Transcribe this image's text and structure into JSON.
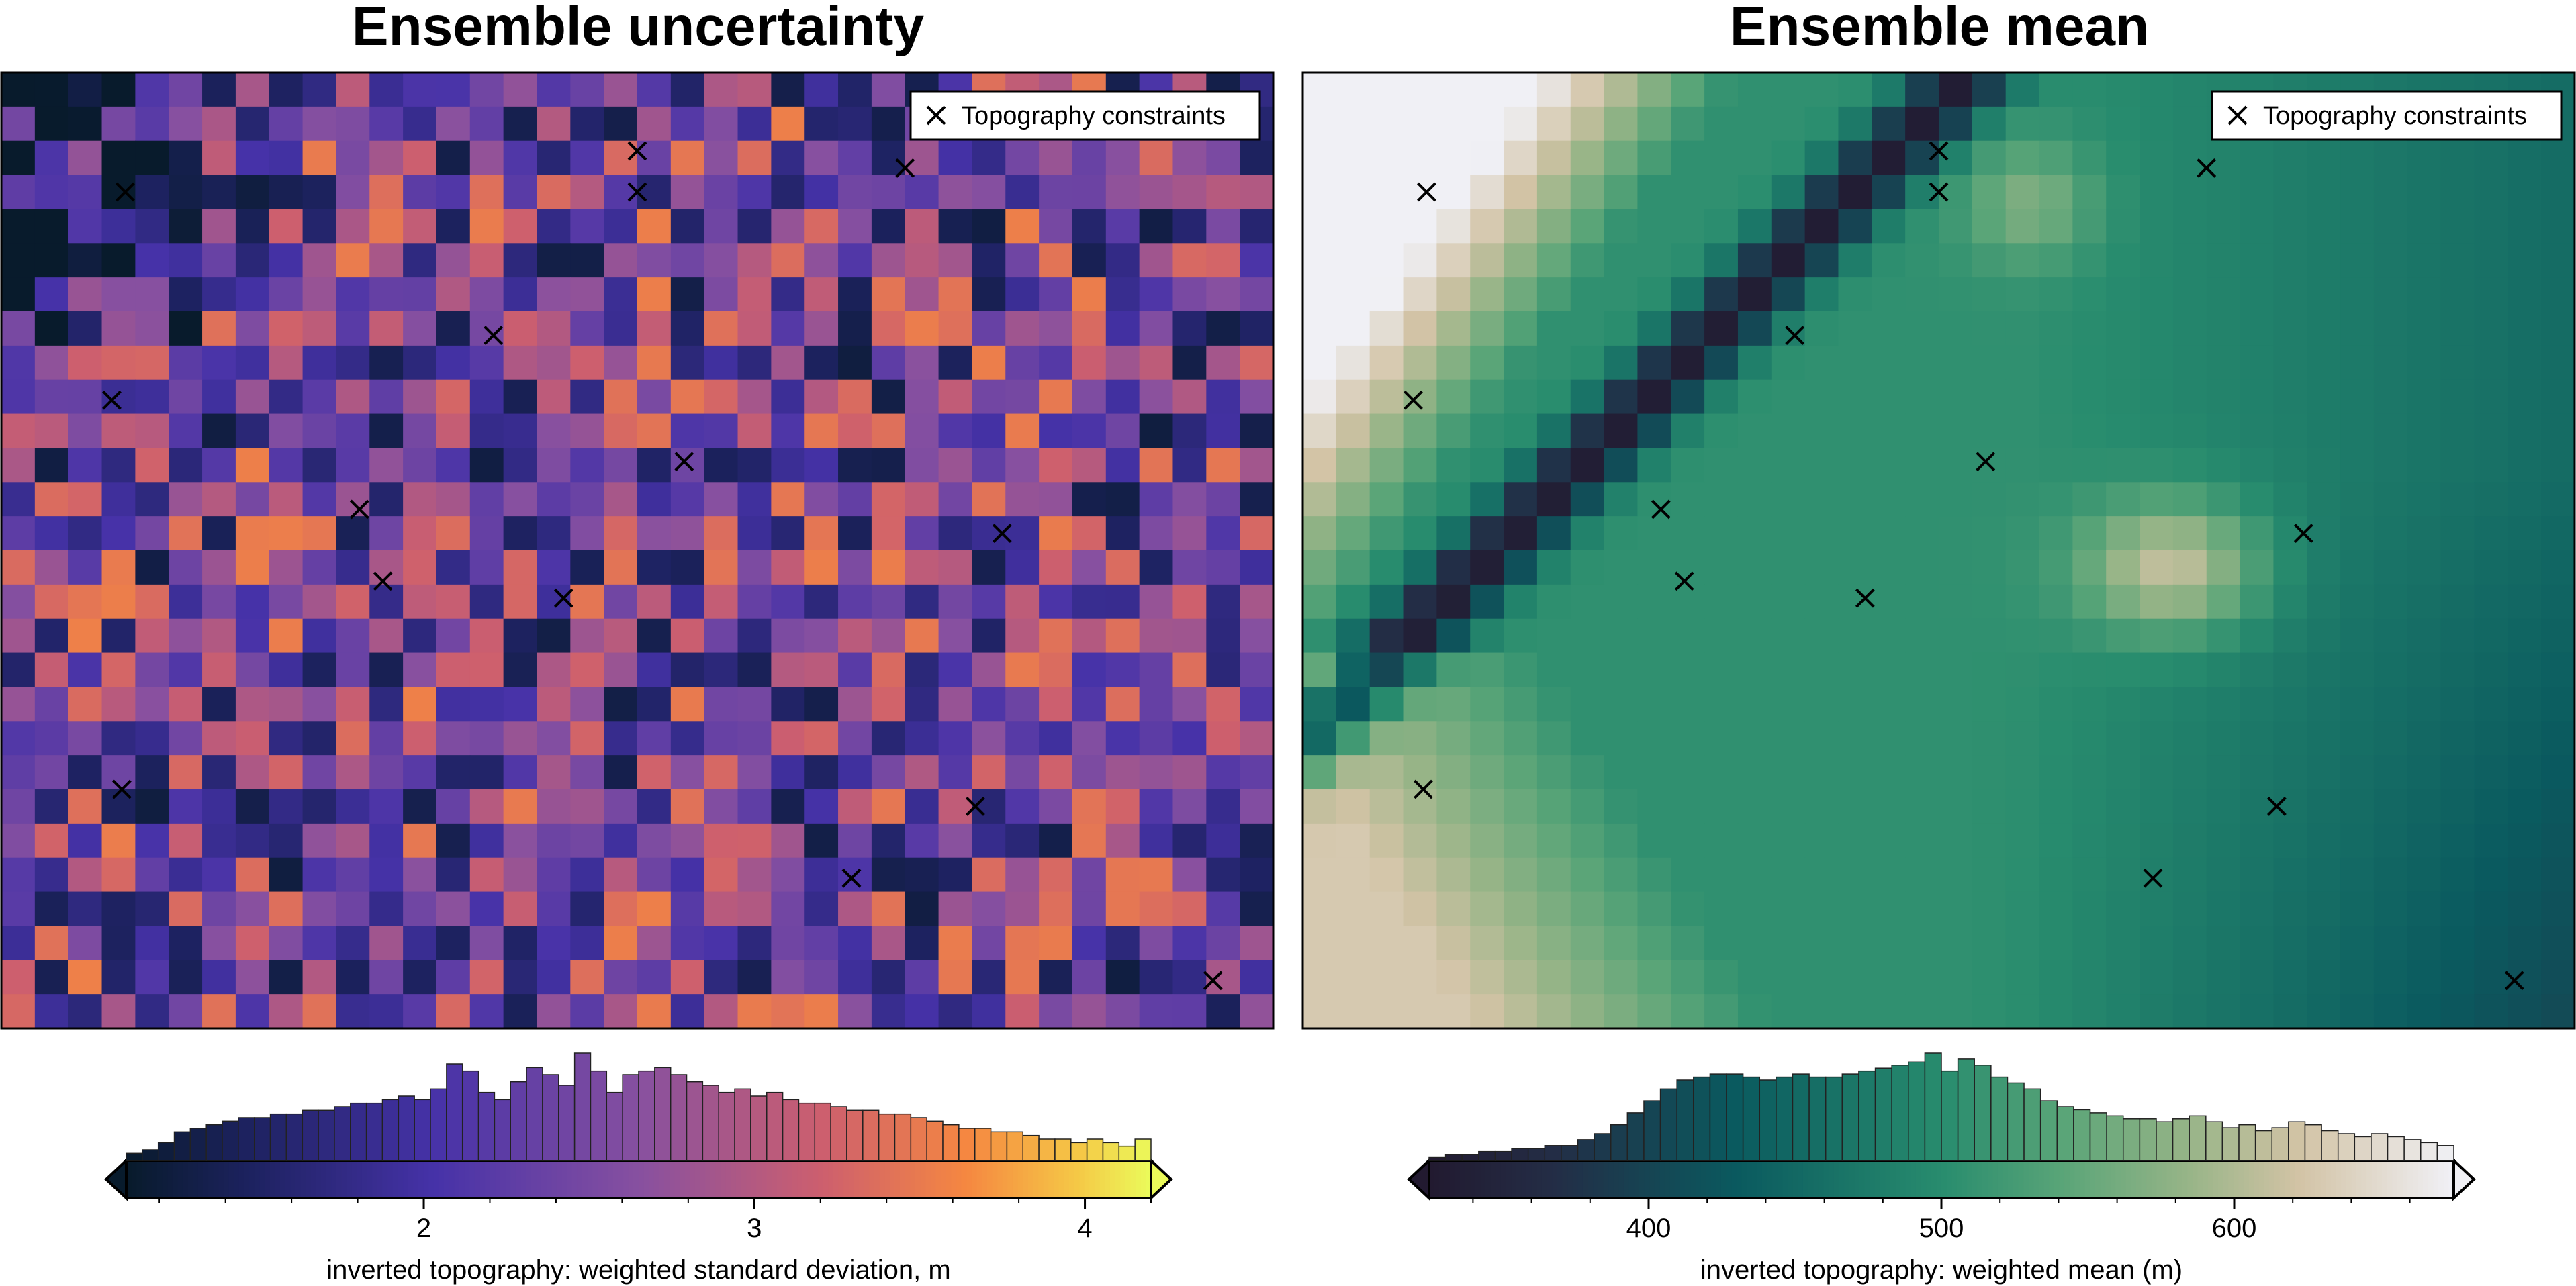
{
  "chart_data": [
    {
      "type": "heatmap",
      "title": "Ensemble uncertainty",
      "grid": {
        "cols": 38,
        "rows": 28
      },
      "colormap": "plasma",
      "legend": {
        "label": "Topography constraints",
        "placement": "top-right",
        "marker": "x"
      },
      "constraints": [
        {
          "col": 3.7,
          "row": 3.5
        },
        {
          "col": 19.0,
          "row": 2.3
        },
        {
          "col": 19.0,
          "row": 3.5
        },
        {
          "col": 27.0,
          "row": 2.8
        },
        {
          "col": 14.7,
          "row": 7.7
        },
        {
          "col": 3.3,
          "row": 9.6
        },
        {
          "col": 20.4,
          "row": 11.4
        },
        {
          "col": 10.7,
          "row": 12.8
        },
        {
          "col": 29.9,
          "row": 13.5
        },
        {
          "col": 11.4,
          "row": 14.9
        },
        {
          "col": 16.8,
          "row": 15.4
        },
        {
          "col": 3.6,
          "row": 21.0
        },
        {
          "col": 29.1,
          "row": 21.5
        },
        {
          "col": 25.4,
          "row": 23.6
        },
        {
          "col": 36.2,
          "row": 26.6
        }
      ],
      "colorbar": {
        "label": "inverted topography: weighted standard deviation, m",
        "range": [
          1.1,
          4.2
        ],
        "ticks": [
          2,
          3,
          4
        ],
        "extend": "both",
        "histogram_counts": [
          2,
          3,
          5,
          8,
          9,
          10,
          11,
          12,
          12,
          13,
          13,
          14,
          14,
          15,
          16,
          16,
          17,
          18,
          17,
          20,
          27,
          25,
          19,
          17,
          22,
          26,
          24,
          21,
          30,
          25,
          19,
          24,
          25,
          26,
          24,
          22,
          21,
          19,
          20,
          18,
          19,
          17,
          16,
          16,
          15,
          14,
          14,
          13,
          13,
          12,
          11,
          10,
          9,
          9,
          8,
          8,
          7,
          6,
          6,
          5,
          6,
          5,
          4,
          6
        ]
      }
    },
    {
      "type": "heatmap",
      "title": "Ensemble mean",
      "grid": {
        "cols": 38,
        "rows": 28
      },
      "colormap": "rain",
      "legend": {
        "label": "Topography constraints",
        "placement": "top-right",
        "marker": "x"
      },
      "constraints": [
        {
          "col": 3.7,
          "row": 3.5
        },
        {
          "col": 19.0,
          "row": 2.3
        },
        {
          "col": 19.0,
          "row": 3.5
        },
        {
          "col": 27.0,
          "row": 2.8
        },
        {
          "col": 14.7,
          "row": 7.7
        },
        {
          "col": 3.3,
          "row": 9.6
        },
        {
          "col": 20.4,
          "row": 11.4
        },
        {
          "col": 10.7,
          "row": 12.8
        },
        {
          "col": 29.9,
          "row": 13.5
        },
        {
          "col": 11.4,
          "row": 14.9
        },
        {
          "col": 16.8,
          "row": 15.4
        },
        {
          "col": 3.6,
          "row": 21.0
        },
        {
          "col": 29.1,
          "row": 21.5
        },
        {
          "col": 25.4,
          "row": 23.6
        },
        {
          "col": 36.2,
          "row": 26.6
        }
      ],
      "colorbar": {
        "label": "inverted topography: weighted mean (m)",
        "range": [
          325,
          675
        ],
        "ticks": [
          400,
          500,
          600
        ],
        "extend": "both",
        "histogram_counts": [
          1,
          2,
          2,
          3,
          3,
          4,
          4,
          5,
          5,
          7,
          9,
          12,
          16,
          20,
          24,
          27,
          28,
          29,
          29,
          28,
          27,
          28,
          29,
          28,
          28,
          29,
          30,
          31,
          32,
          33,
          36,
          30,
          34,
          32,
          28,
          26,
          24,
          20,
          18,
          17,
          16,
          15,
          14,
          14,
          13,
          14,
          15,
          13,
          11,
          12,
          10,
          11,
          13,
          12,
          10,
          9,
          8,
          9,
          8,
          7,
          6,
          5
        ]
      }
    }
  ]
}
